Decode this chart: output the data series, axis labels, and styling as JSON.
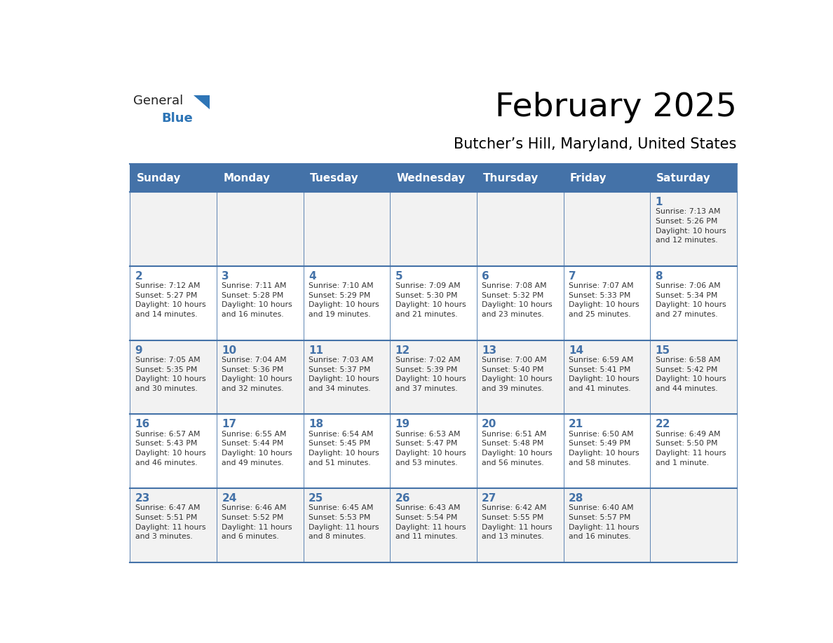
{
  "title": "February 2025",
  "subtitle": "Butcher’s Hill, Maryland, United States",
  "header_bg": "#4472a8",
  "header_text_color": "#ffffff",
  "cell_bg_light": "#f2f2f2",
  "cell_bg_white": "#ffffff",
  "day_headers": [
    "Sunday",
    "Monday",
    "Tuesday",
    "Wednesday",
    "Thursday",
    "Friday",
    "Saturday"
  ],
  "grid_line_color": "#4472a8",
  "day_number_color": "#4472a8",
  "text_color": "#333333",
  "logo_general_color": "#222222",
  "logo_blue_color": "#2e75b6",
  "weeks": [
    [
      {
        "day": null,
        "info": null
      },
      {
        "day": null,
        "info": null
      },
      {
        "day": null,
        "info": null
      },
      {
        "day": null,
        "info": null
      },
      {
        "day": null,
        "info": null
      },
      {
        "day": null,
        "info": null
      },
      {
        "day": 1,
        "info": "Sunrise: 7:13 AM\nSunset: 5:26 PM\nDaylight: 10 hours\nand 12 minutes."
      }
    ],
    [
      {
        "day": 2,
        "info": "Sunrise: 7:12 AM\nSunset: 5:27 PM\nDaylight: 10 hours\nand 14 minutes."
      },
      {
        "day": 3,
        "info": "Sunrise: 7:11 AM\nSunset: 5:28 PM\nDaylight: 10 hours\nand 16 minutes."
      },
      {
        "day": 4,
        "info": "Sunrise: 7:10 AM\nSunset: 5:29 PM\nDaylight: 10 hours\nand 19 minutes."
      },
      {
        "day": 5,
        "info": "Sunrise: 7:09 AM\nSunset: 5:30 PM\nDaylight: 10 hours\nand 21 minutes."
      },
      {
        "day": 6,
        "info": "Sunrise: 7:08 AM\nSunset: 5:32 PM\nDaylight: 10 hours\nand 23 minutes."
      },
      {
        "day": 7,
        "info": "Sunrise: 7:07 AM\nSunset: 5:33 PM\nDaylight: 10 hours\nand 25 minutes."
      },
      {
        "day": 8,
        "info": "Sunrise: 7:06 AM\nSunset: 5:34 PM\nDaylight: 10 hours\nand 27 minutes."
      }
    ],
    [
      {
        "day": 9,
        "info": "Sunrise: 7:05 AM\nSunset: 5:35 PM\nDaylight: 10 hours\nand 30 minutes."
      },
      {
        "day": 10,
        "info": "Sunrise: 7:04 AM\nSunset: 5:36 PM\nDaylight: 10 hours\nand 32 minutes."
      },
      {
        "day": 11,
        "info": "Sunrise: 7:03 AM\nSunset: 5:37 PM\nDaylight: 10 hours\nand 34 minutes."
      },
      {
        "day": 12,
        "info": "Sunrise: 7:02 AM\nSunset: 5:39 PM\nDaylight: 10 hours\nand 37 minutes."
      },
      {
        "day": 13,
        "info": "Sunrise: 7:00 AM\nSunset: 5:40 PM\nDaylight: 10 hours\nand 39 minutes."
      },
      {
        "day": 14,
        "info": "Sunrise: 6:59 AM\nSunset: 5:41 PM\nDaylight: 10 hours\nand 41 minutes."
      },
      {
        "day": 15,
        "info": "Sunrise: 6:58 AM\nSunset: 5:42 PM\nDaylight: 10 hours\nand 44 minutes."
      }
    ],
    [
      {
        "day": 16,
        "info": "Sunrise: 6:57 AM\nSunset: 5:43 PM\nDaylight: 10 hours\nand 46 minutes."
      },
      {
        "day": 17,
        "info": "Sunrise: 6:55 AM\nSunset: 5:44 PM\nDaylight: 10 hours\nand 49 minutes."
      },
      {
        "day": 18,
        "info": "Sunrise: 6:54 AM\nSunset: 5:45 PM\nDaylight: 10 hours\nand 51 minutes."
      },
      {
        "day": 19,
        "info": "Sunrise: 6:53 AM\nSunset: 5:47 PM\nDaylight: 10 hours\nand 53 minutes."
      },
      {
        "day": 20,
        "info": "Sunrise: 6:51 AM\nSunset: 5:48 PM\nDaylight: 10 hours\nand 56 minutes."
      },
      {
        "day": 21,
        "info": "Sunrise: 6:50 AM\nSunset: 5:49 PM\nDaylight: 10 hours\nand 58 minutes."
      },
      {
        "day": 22,
        "info": "Sunrise: 6:49 AM\nSunset: 5:50 PM\nDaylight: 11 hours\nand 1 minute."
      }
    ],
    [
      {
        "day": 23,
        "info": "Sunrise: 6:47 AM\nSunset: 5:51 PM\nDaylight: 11 hours\nand 3 minutes."
      },
      {
        "day": 24,
        "info": "Sunrise: 6:46 AM\nSunset: 5:52 PM\nDaylight: 11 hours\nand 6 minutes."
      },
      {
        "day": 25,
        "info": "Sunrise: 6:45 AM\nSunset: 5:53 PM\nDaylight: 11 hours\nand 8 minutes."
      },
      {
        "day": 26,
        "info": "Sunrise: 6:43 AM\nSunset: 5:54 PM\nDaylight: 11 hours\nand 11 minutes."
      },
      {
        "day": 27,
        "info": "Sunrise: 6:42 AM\nSunset: 5:55 PM\nDaylight: 11 hours\nand 13 minutes."
      },
      {
        "day": 28,
        "info": "Sunrise: 6:40 AM\nSunset: 5:57 PM\nDaylight: 11 hours\nand 16 minutes."
      },
      {
        "day": null,
        "info": null
      }
    ]
  ]
}
